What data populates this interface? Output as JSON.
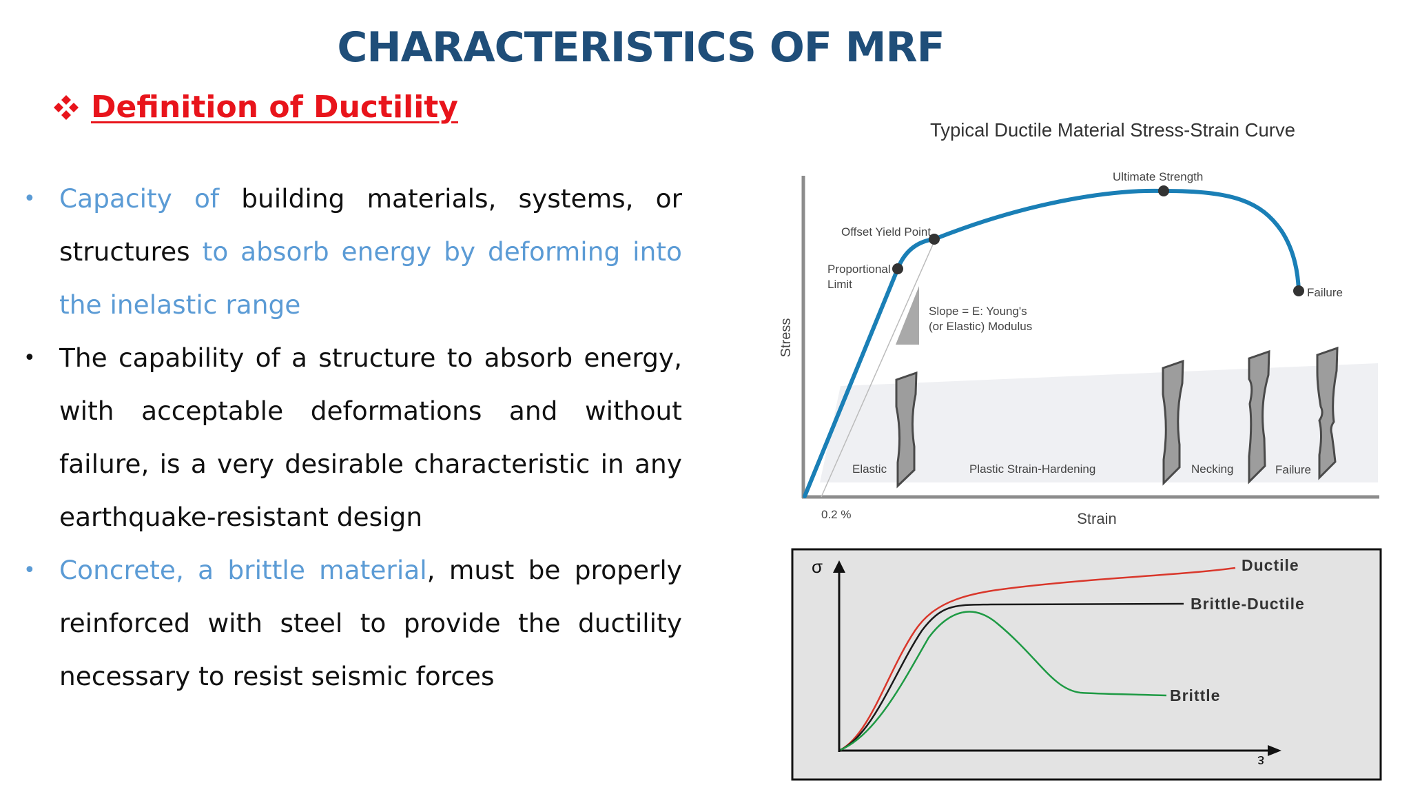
{
  "slide": {
    "title": "CHARACTERISTICS OF MRF",
    "subheading": "Definition of  Ductility",
    "bullets": [
      {
        "segments": [
          {
            "text": "Capacity of ",
            "highlight": true
          },
          {
            "text": "building materials, systems, or structures ",
            "highlight": false
          },
          {
            "text": "to absorb energy by deforming into the inelastic range",
            "highlight": true
          }
        ]
      },
      {
        "segments": [
          {
            "text": "The capability of a structure to absorb energy, with acceptable deformations and without failure, is a very desirable characteristic in any earthquake-resistant design",
            "highlight": false
          }
        ]
      },
      {
        "segments": [
          {
            "text": "Concrete, a brittle material",
            "highlight": true
          },
          {
            "text": ", must be properly reinforced with steel to provide the ductility necessary to resist seismic forces",
            "highlight": false
          }
        ]
      }
    ],
    "colors": {
      "title": "#1f4e79",
      "subheading": "#e8141b",
      "highlight": "#5b9bd5",
      "curve": "#1a7fb6"
    }
  },
  "figure_top": {
    "title": "Typical Ductile Material Stress-Strain Curve",
    "y_label": "Stress",
    "x_label": "Strain",
    "offset_label": "0.2 %",
    "points": {
      "proportional_limit": "Proportional\nLimit",
      "offset_yield": "Offset Yield Point",
      "ultimate": "Ultimate Strength",
      "failure": "Failure"
    },
    "slope_note": "Slope = E: Young's\n(or Elastic) Modulus",
    "regions": [
      "Elastic",
      "Plastic Strain-Hardening",
      "Necking",
      "Failure"
    ]
  },
  "figure_bottom": {
    "y_symbol": "σ",
    "x_symbol": "ε",
    "curves": [
      {
        "name": "Ductile",
        "color": "#d9372b"
      },
      {
        "name": "Brittle-Ductile",
        "color": "#1a1a1a"
      },
      {
        "name": "Brittle",
        "color": "#1e9a44"
      }
    ]
  }
}
